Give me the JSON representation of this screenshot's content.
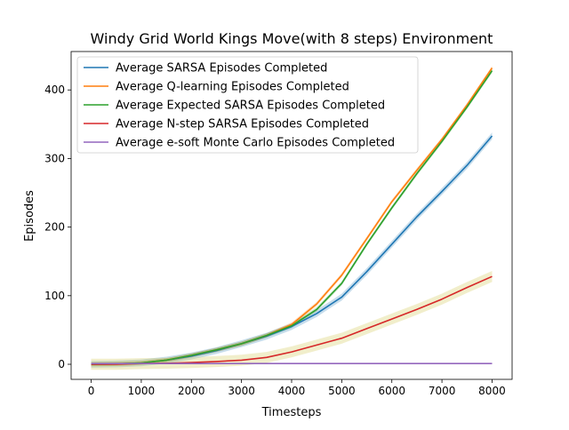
{
  "chart_data": {
    "type": "line",
    "title": "Windy Grid World Kings Move(with 8 steps) Environment",
    "xlabel": "Timesteps",
    "ylabel": "Episodes",
    "xlim": [
      -400,
      8400
    ],
    "ylim": [
      -22,
      456
    ],
    "xticks": [
      0,
      1000,
      2000,
      3000,
      4000,
      5000,
      6000,
      7000,
      8000
    ],
    "yticks": [
      0,
      100,
      200,
      300,
      400
    ],
    "grid": false,
    "legend_position": "top-left",
    "x": [
      0,
      500,
      1000,
      1500,
      2000,
      2500,
      3000,
      3500,
      4000,
      4500,
      5000,
      5500,
      6000,
      6500,
      7000,
      7500,
      8000
    ],
    "series": [
      {
        "name": "Average SARSA Episodes Completed",
        "color": "#1f77b4",
        "values": [
          0,
          0.5,
          2,
          6,
          12,
          20,
          30,
          41,
          55,
          74,
          98,
          135,
          175,
          215,
          252,
          290,
          333
        ],
        "band": 5
      },
      {
        "name": "Average Q-learning Episodes Completed",
        "color": "#ff7f0e",
        "values": [
          0,
          0.5,
          2,
          6,
          13,
          21,
          30,
          42,
          58,
          88,
          130,
          183,
          237,
          283,
          328,
          378,
          432
        ],
        "band": 3
      },
      {
        "name": "Average Expected SARSA Episodes Completed",
        "color": "#2ca02c",
        "values": [
          0,
          0.5,
          2,
          6,
          13,
          21,
          30,
          42,
          56,
          80,
          118,
          175,
          228,
          278,
          325,
          375,
          428
        ],
        "band": 3
      },
      {
        "name": "Average N-step SARSA Episodes Completed",
        "color": "#d62728",
        "values": [
          0,
          0,
          1,
          1.5,
          2.5,
          4,
          6,
          10,
          18,
          28,
          38,
          52,
          66,
          80,
          95,
          112,
          128
        ],
        "band": 8
      },
      {
        "name": "Average e-soft Monte Carlo Episodes Completed",
        "color": "#9467bd",
        "values": [
          1,
          1,
          1,
          1,
          1,
          1,
          1,
          1,
          1,
          1,
          1,
          1,
          1,
          1,
          1,
          1,
          1
        ],
        "band": 0.6
      }
    ]
  }
}
